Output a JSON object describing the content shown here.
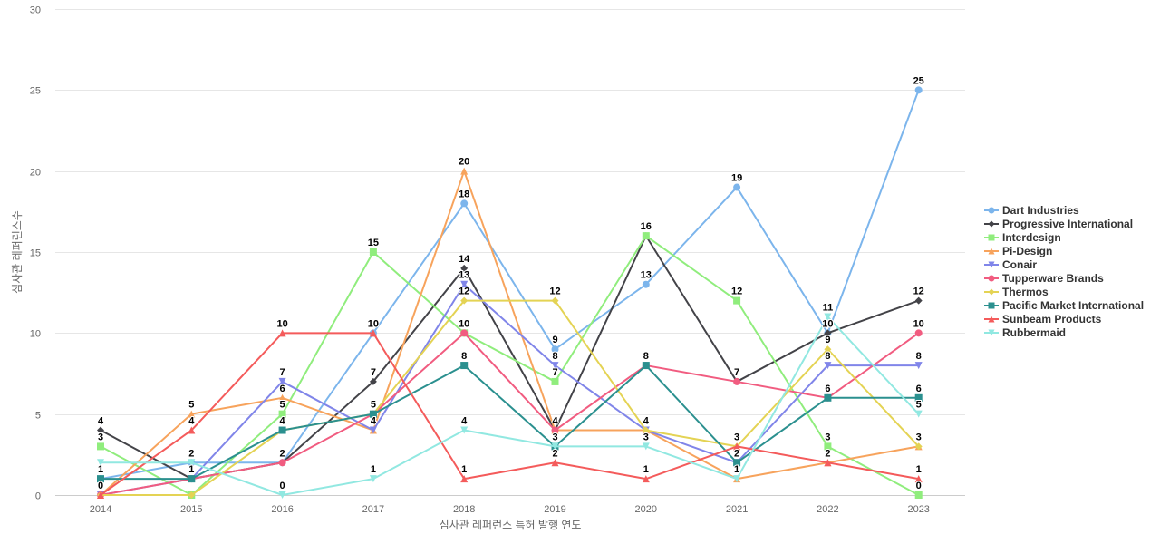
{
  "chart_data": {
    "type": "line",
    "title": "",
    "xlabel": "심사관 레퍼런스 특허 발행 연도",
    "ylabel": "심사관 레퍼런스수",
    "ylim": [
      0,
      30
    ],
    "yticks": [
      0,
      5,
      10,
      15,
      20,
      25,
      30
    ],
    "x": [
      "2014",
      "2015",
      "2016",
      "2017",
      "2018",
      "2019",
      "2020",
      "2021",
      "2022",
      "2023"
    ],
    "grid": "horizontal",
    "legend": "right",
    "series": [
      {
        "name": "Dart Industries",
        "color": "#7cb5ec",
        "marker": "circle",
        "values": [
          1,
          2,
          2,
          10,
          18,
          9,
          13,
          19,
          10,
          25
        ],
        "labels": [
          true,
          true,
          true,
          false,
          true,
          true,
          true,
          true,
          true,
          true
        ]
      },
      {
        "name": "Progressive International",
        "color": "#434348",
        "marker": "diamond",
        "values": [
          4,
          1,
          2,
          7,
          14,
          4,
          16,
          7,
          10,
          12
        ],
        "labels": [
          true,
          true,
          true,
          true,
          true,
          true,
          false,
          true,
          true,
          true
        ]
      },
      {
        "name": "Interdesign",
        "color": "#90ed7d",
        "marker": "square",
        "values": [
          3,
          0,
          5,
          15,
          10,
          7,
          16,
          12,
          3,
          0
        ],
        "labels": [
          true,
          false,
          true,
          true,
          false,
          true,
          true,
          true,
          true,
          true
        ]
      },
      {
        "name": "Pi-Design",
        "color": "#f7a35c",
        "marker": "triangle",
        "values": [
          0,
          5,
          6,
          4,
          20,
          4,
          4,
          1,
          2,
          3
        ],
        "labels": [
          false,
          true,
          true,
          false,
          true,
          false,
          false,
          false,
          false,
          false
        ]
      },
      {
        "name": "Conair",
        "color": "#8085e9",
        "marker": "triangle-down",
        "values": [
          0,
          1,
          7,
          4,
          13,
          8,
          4,
          2,
          8,
          8
        ],
        "labels": [
          false,
          false,
          true,
          true,
          true,
          true,
          true,
          true,
          true,
          true
        ]
      },
      {
        "name": "Tupperware Brands",
        "color": "#f15c80",
        "marker": "circle",
        "values": [
          0,
          1,
          2,
          5,
          10,
          4,
          8,
          7,
          6,
          10
        ],
        "labels": [
          false,
          false,
          false,
          false,
          true,
          false,
          false,
          false,
          false,
          true
        ]
      },
      {
        "name": "Thermos",
        "color": "#e4d354",
        "marker": "diamond",
        "values": [
          0,
          0,
          4,
          5,
          12,
          12,
          4,
          3,
          9,
          3
        ],
        "labels": [
          false,
          false,
          false,
          false,
          true,
          true,
          false,
          true,
          true,
          true
        ]
      },
      {
        "name": "Pacific Market International",
        "color": "#2b908f",
        "marker": "square",
        "values": [
          1,
          1,
          4,
          5,
          8,
          3,
          8,
          2,
          6,
          6
        ],
        "labels": [
          true,
          false,
          true,
          true,
          true,
          true,
          true,
          false,
          true,
          true
        ]
      },
      {
        "name": "Sunbeam Products",
        "color": "#f45b5b",
        "marker": "triangle",
        "values": [
          0,
          4,
          10,
          10,
          1,
          2,
          1,
          3,
          2,
          1
        ],
        "labels": [
          true,
          true,
          true,
          true,
          true,
          true,
          true,
          false,
          true,
          true
        ]
      },
      {
        "name": "Rubbermaid",
        "color": "#91e8e1",
        "marker": "triangle-down",
        "values": [
          2,
          2,
          0,
          1,
          4,
          3,
          3,
          1,
          11,
          5
        ],
        "labels": [
          false,
          false,
          true,
          true,
          true,
          false,
          true,
          true,
          true,
          true
        ]
      }
    ]
  }
}
